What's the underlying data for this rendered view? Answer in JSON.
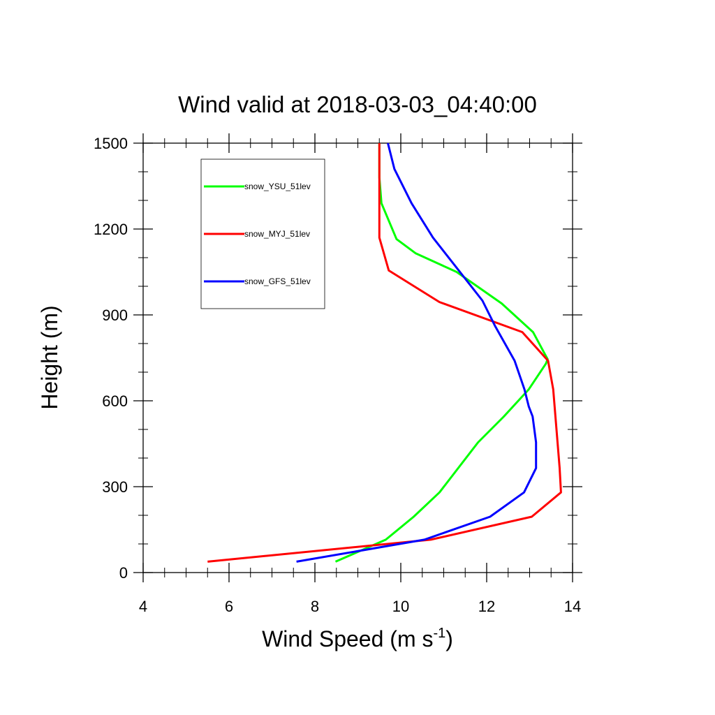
{
  "chart_data": {
    "type": "line",
    "title": "Wind valid at 2018-03-03_04:40:00",
    "xlabel": "Wind Speed (m s",
    "xlabel_superscript": "-1",
    "xlabel_suffix": ")",
    "ylabel": "Height (m)",
    "xlim": [
      4,
      14
    ],
    "ylim": [
      0,
      1500
    ],
    "x_ticks": [
      "4",
      "6",
      "8",
      "10",
      "12",
      "14"
    ],
    "y_ticks": [
      "0",
      "300",
      "600",
      "900",
      "1200",
      "1500"
    ],
    "grid": false,
    "legend_position": "top-left",
    "series": [
      {
        "name": "snow_YSU_51lev",
        "color": "#00ff00",
        "x": [
          8.48,
          9.65,
          10.3,
          10.9,
          11.8,
          12.4,
          12.98,
          13.38,
          13.42,
          13.08,
          12.35,
          11.3,
          10.35,
          9.9,
          9.55,
          9.5,
          9.5
        ],
        "y": [
          38,
          115,
          195,
          280,
          455,
          545,
          640,
          730,
          745,
          840,
          940,
          1050,
          1115,
          1165,
          1290,
          1380,
          1500
        ]
      },
      {
        "name": "snow_MYJ_51lev",
        "color": "#ff0000",
        "x": [
          5.5,
          10.7,
          13.05,
          13.73,
          13.7,
          13.55,
          13.43,
          12.83,
          10.9,
          9.72,
          9.5,
          9.5,
          9.5
        ],
        "y": [
          38,
          115,
          195,
          280,
          365,
          640,
          740,
          840,
          945,
          1055,
          1170,
          1380,
          1500
        ]
      },
      {
        "name": "snow_GFS_51lev",
        "color": "#0000ff",
        "x": [
          7.57,
          10.55,
          12.08,
          12.87,
          13.15,
          13.15,
          13.07,
          12.98,
          12.88,
          12.65,
          12.2,
          11.9,
          10.75,
          10.25,
          9.85,
          9.7
        ],
        "y": [
          38,
          115,
          195,
          280,
          365,
          455,
          545,
          580,
          640,
          740,
          860,
          950,
          1170,
          1290,
          1410,
          1500
        ]
      }
    ]
  }
}
